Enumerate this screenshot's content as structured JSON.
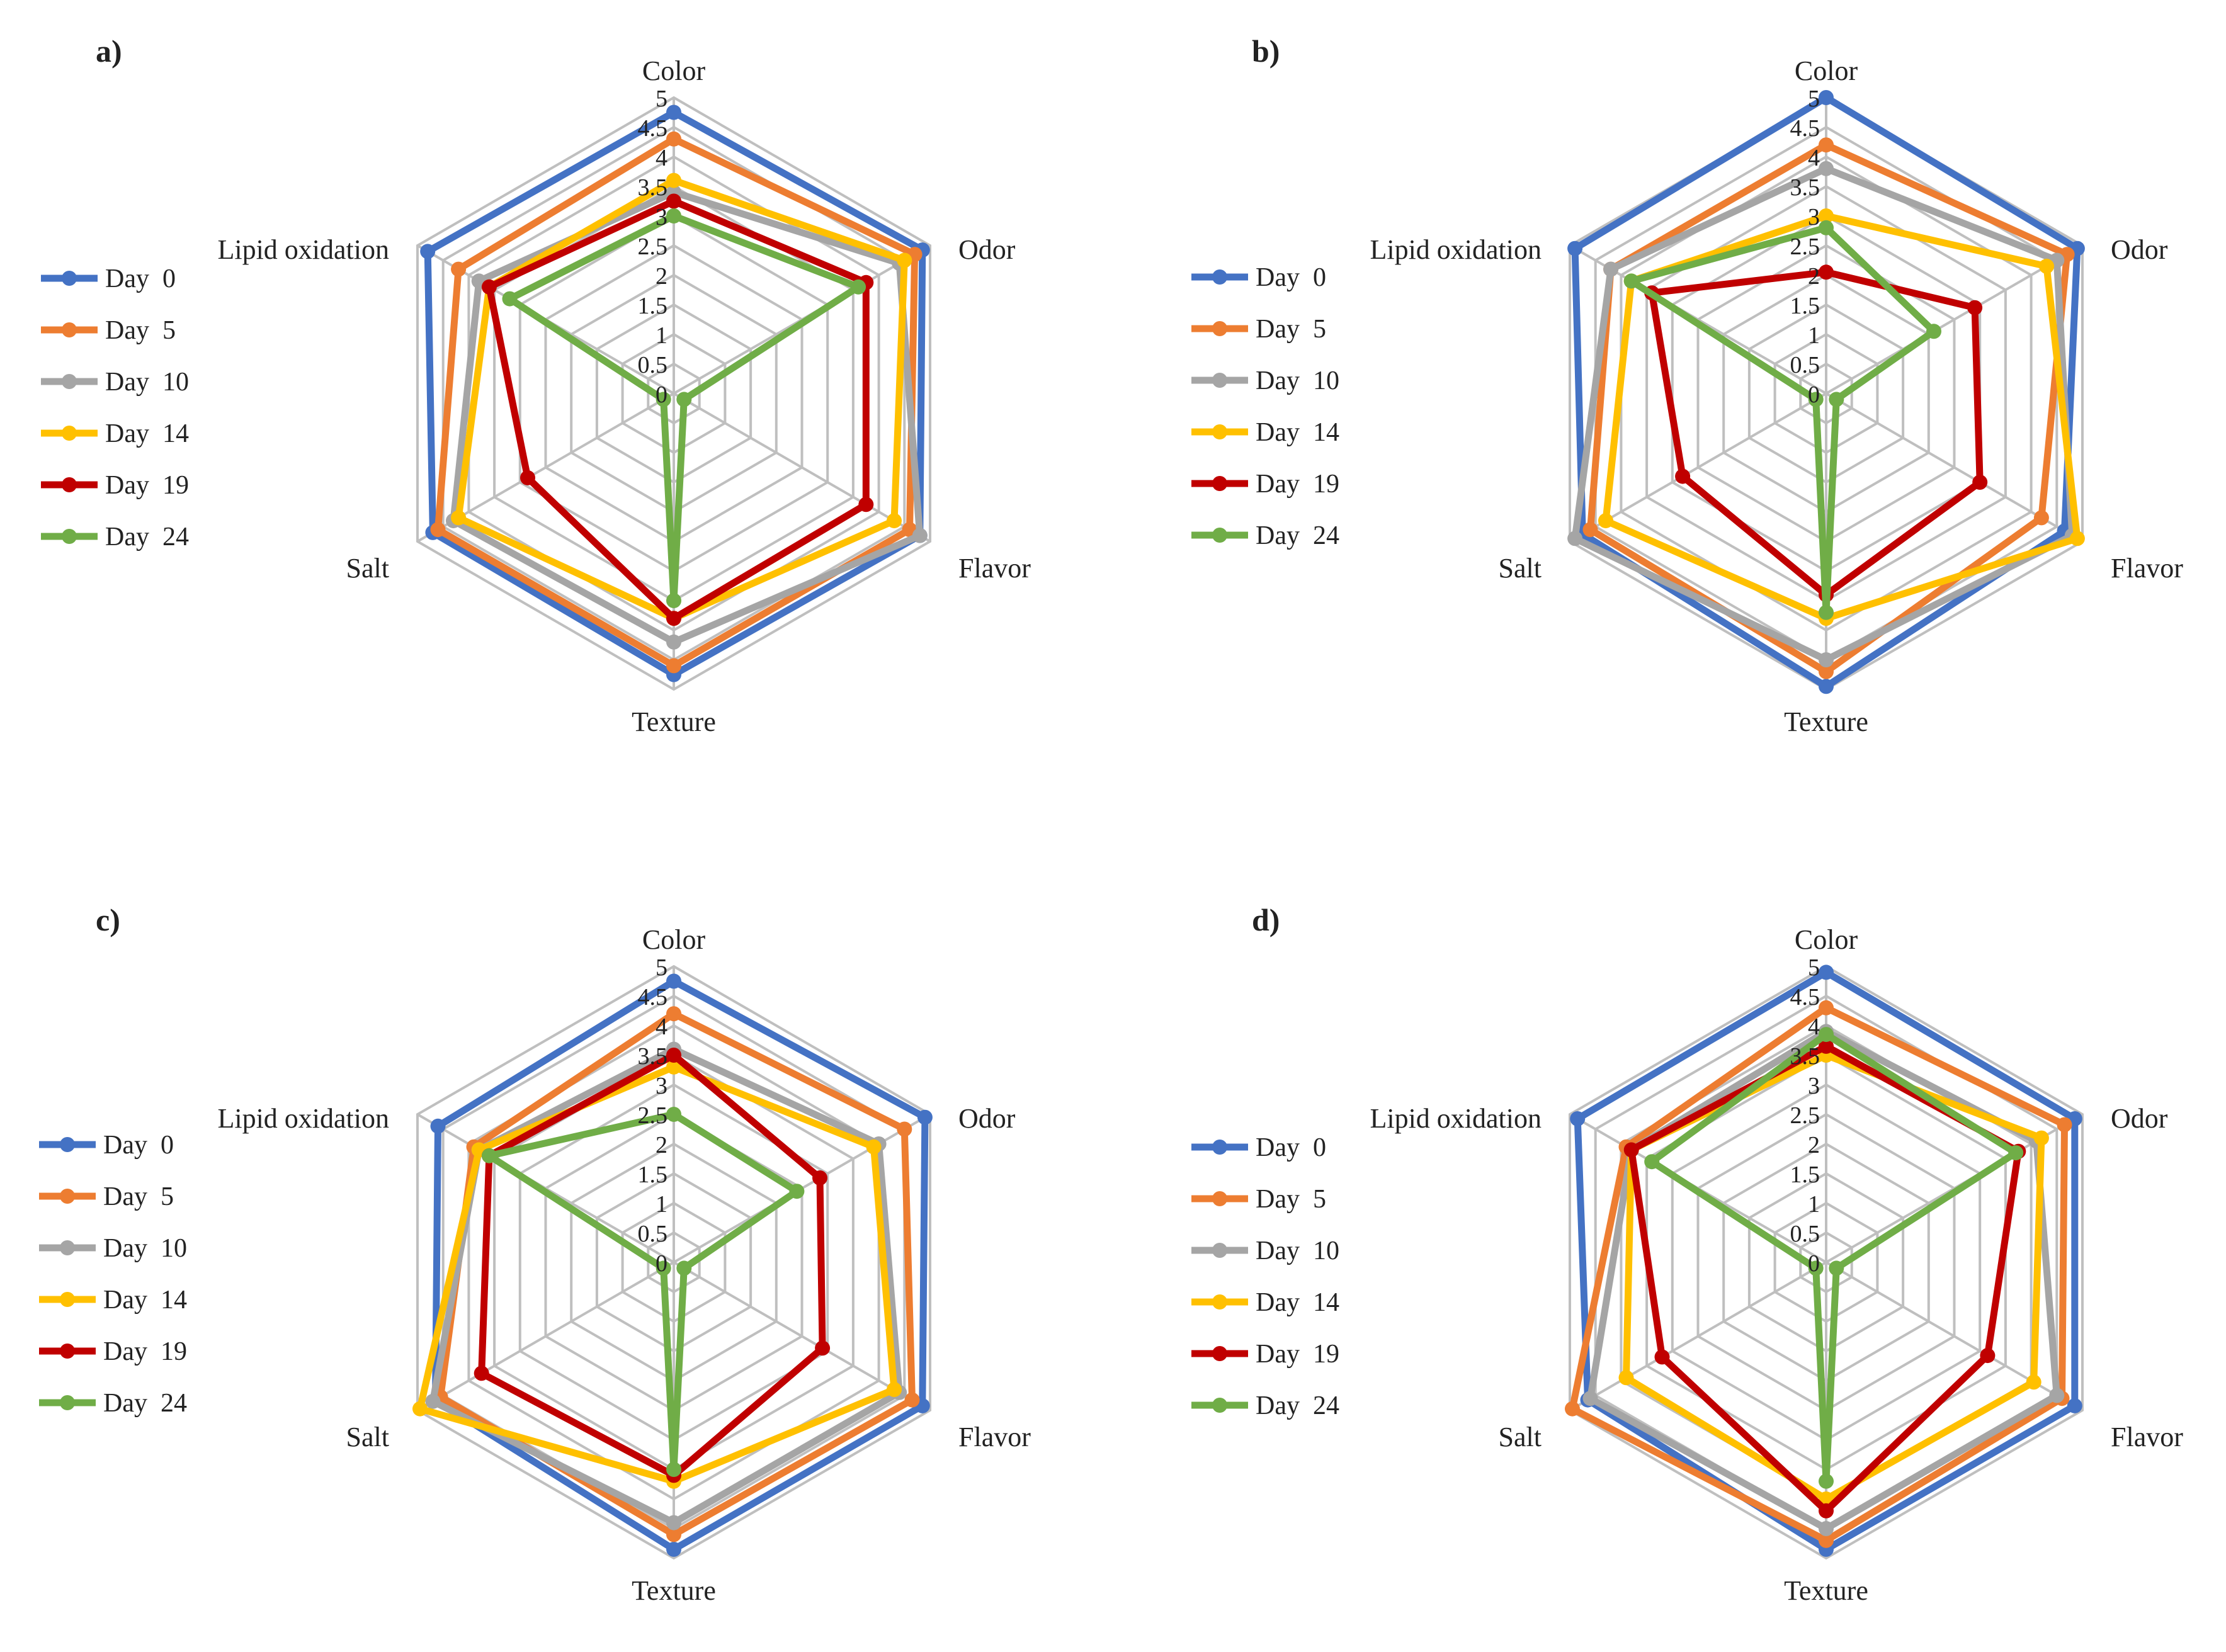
{
  "chart_data": [
    {
      "type": "radar",
      "panel_label": "a)",
      "axes": [
        "Color",
        "Odor",
        "Flavor",
        "Texture",
        "Salt",
        "Lipid oxidation"
      ],
      "rlim": [
        0,
        5
      ],
      "ticks": [
        "0",
        "0.5",
        "1",
        "1.5",
        "2",
        "2.5",
        "3",
        "3.5",
        "4",
        "4.5",
        "5"
      ],
      "legend_position": "left",
      "series": [
        {
          "name": "Day  0",
          "color": "#4472C4",
          "values": [
            4.75,
            4.85,
            4.8,
            4.75,
            4.7,
            4.8
          ]
        },
        {
          "name": "Day  5",
          "color": "#ED7D31",
          "values": [
            4.3,
            4.7,
            4.6,
            4.6,
            4.6,
            4.2
          ]
        },
        {
          "name": "Day  10",
          "color": "#A5A5A5",
          "values": [
            3.4,
            4.4,
            4.8,
            4.2,
            4.3,
            3.8
          ]
        },
        {
          "name": "Day  14",
          "color": "#FFC000",
          "values": [
            3.6,
            4.5,
            4.3,
            3.8,
            4.2,
            3.6
          ]
        },
        {
          "name": "Day  19",
          "color": "#C00000",
          "values": [
            3.25,
            3.75,
            3.75,
            3.8,
            2.85,
            3.6
          ]
        },
        {
          "name": "Day  24",
          "color": "#70AD47",
          "values": [
            3.0,
            3.6,
            0.2,
            3.5,
            0.2,
            3.2
          ]
        }
      ]
    },
    {
      "type": "radar",
      "panel_label": "b)",
      "axes": [
        "Color",
        "Odor",
        "Flavor",
        "Texture",
        "Salt",
        "Lipid oxidation"
      ],
      "rlim": [
        0,
        5
      ],
      "ticks": [
        "0",
        "0.5",
        "1",
        "1.5",
        "2",
        "2.5",
        "3",
        "3.5",
        "4",
        "4.5",
        "5"
      ],
      "legend_position": "left",
      "series": [
        {
          "name": "Day  0",
          "color": "#4472C4",
          "values": [
            5.0,
            4.9,
            4.65,
            4.95,
            4.75,
            4.9
          ]
        },
        {
          "name": "Day  5",
          "color": "#ED7D31",
          "values": [
            4.2,
            4.7,
            4.2,
            4.7,
            4.6,
            4.2
          ]
        },
        {
          "name": "Day  10",
          "color": "#A5A5A5",
          "values": [
            3.8,
            4.5,
            4.8,
            4.5,
            4.9,
            4.2
          ]
        },
        {
          "name": "Day  14",
          "color": "#FFC000",
          "values": [
            3.0,
            4.3,
            4.9,
            3.8,
            4.3,
            3.8
          ]
        },
        {
          "name": "Day  19",
          "color": "#C00000",
          "values": [
            2.05,
            2.9,
            3.0,
            3.4,
            2.8,
            3.4
          ]
        },
        {
          "name": "Day  24",
          "color": "#70AD47",
          "values": [
            2.8,
            2.1,
            0.2,
            3.7,
            0.2,
            3.8
          ]
        }
      ]
    },
    {
      "type": "radar",
      "panel_label": "c)",
      "axes": [
        "Color",
        "Odor",
        "Flavor",
        "Texture",
        "Salt",
        "Lipid oxidation"
      ],
      "rlim": [
        0,
        5
      ],
      "ticks": [
        "0",
        "0.5",
        "1",
        "1.5",
        "2",
        "2.5",
        "3",
        "3.5",
        "4",
        "4.5",
        "5"
      ],
      "legend_position": "left",
      "series": [
        {
          "name": "Day  0",
          "color": "#4472C4",
          "values": [
            4.75,
            4.9,
            4.85,
            4.85,
            4.65,
            4.6
          ]
        },
        {
          "name": "Day  5",
          "color": "#ED7D31",
          "values": [
            4.2,
            4.5,
            4.65,
            4.6,
            4.55,
            3.9
          ]
        },
        {
          "name": "Day  10",
          "color": "#A5A5A5",
          "values": [
            3.6,
            4.0,
            4.4,
            4.4,
            4.7,
            3.8
          ]
        },
        {
          "name": "Day  14",
          "color": "#FFC000",
          "values": [
            3.3,
            3.9,
            4.3,
            3.7,
            4.95,
            3.8
          ]
        },
        {
          "name": "Day  19",
          "color": "#C00000",
          "values": [
            3.5,
            2.85,
            2.9,
            3.6,
            3.75,
            3.6
          ]
        },
        {
          "name": "Day  24",
          "color": "#70AD47",
          "values": [
            2.5,
            2.4,
            0.2,
            3.5,
            0.2,
            3.6
          ]
        }
      ]
    },
    {
      "type": "radar",
      "panel_label": "d)",
      "axes": [
        "Color",
        "Odor",
        "Flavor",
        "Texture",
        "Salt",
        "Lipid oxidation"
      ],
      "rlim": [
        0,
        5
      ],
      "ticks": [
        "0",
        "0.5",
        "1",
        "1.5",
        "2",
        "2.5",
        "3",
        "3.5",
        "4",
        "4.5",
        "5"
      ],
      "legend_position": "left",
      "series": [
        {
          "name": "Day  0",
          "color": "#4472C4",
          "values": [
            4.9,
            4.85,
            4.85,
            4.85,
            4.65,
            4.85
          ]
        },
        {
          "name": "Day  5",
          "color": "#ED7D31",
          "values": [
            4.3,
            4.65,
            4.6,
            4.7,
            4.95,
            3.9
          ]
        },
        {
          "name": "Day  10",
          "color": "#A5A5A5",
          "values": [
            3.9,
            4.1,
            4.5,
            4.5,
            4.6,
            3.8
          ]
        },
        {
          "name": "Day  14",
          "color": "#FFC000",
          "values": [
            3.5,
            4.2,
            4.05,
            4.0,
            3.9,
            3.8
          ]
        },
        {
          "name": "Day  19",
          "color": "#C00000",
          "values": [
            3.65,
            3.75,
            3.15,
            4.2,
            3.2,
            3.8
          ]
        },
        {
          "name": "Day  24",
          "color": "#70AD47",
          "values": [
            3.85,
            3.7,
            0.2,
            3.7,
            0.2,
            3.4
          ]
        }
      ]
    }
  ]
}
